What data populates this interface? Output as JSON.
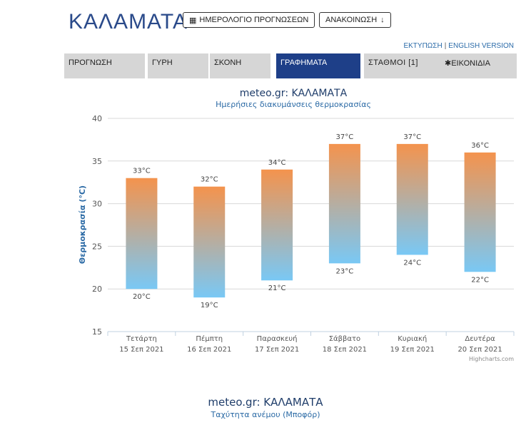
{
  "header": {
    "city": "ΚΑΛΑΜΑΤΑ",
    "calendar_button": "ΗΜΕΡΟΛΟΓΙΟ ΠΡΟΓΝΩΣΕΩΝ",
    "announcement_button": "ΑΝΑΚΟΙΝΩΣΗ",
    "print_link": "ΕΚΤΥΠΩΣΗ",
    "english_link": "ENGLISH VERSION"
  },
  "tabs": [
    {
      "label": "ΠΡΟΓΝΩΣΗ"
    },
    {
      "label": "ΓΥΡΗ"
    },
    {
      "label": "ΣΚΟΝΗ"
    },
    {
      "label": "ΓΡΑΦΗΜΑΤΑ"
    },
    {
      "label": "ΣΤΑΘΜΟΙ [1]"
    },
    {
      "label": "ΕΙΚΟΝΙΔΙΑ"
    }
  ],
  "chart_data": {
    "type": "bar",
    "title": "meteo.gr: ΚΑΛΑΜΑΤΑ",
    "subtitle": "Ημερήσιες διακυμάνσεις θερμοκρασίας",
    "ylabel": "Θερμοκρασία (°C)",
    "ylim": [
      15,
      40
    ],
    "yticks": [
      "15",
      "20",
      "25",
      "30",
      "35",
      "40"
    ],
    "categories": [
      {
        "day": "Τετάρτη",
        "date": "15 Σεπ 2021"
      },
      {
        "day": "Πέμπτη",
        "date": "16 Σεπ 2021"
      },
      {
        "day": "Παρασκευή",
        "date": "17 Σεπ 2021"
      },
      {
        "day": "Σάββατο",
        "date": "18 Σεπ 2021"
      },
      {
        "day": "Κυριακή",
        "date": "19 Σεπ 2021"
      },
      {
        "day": "Δευτέρα",
        "date": "20 Σεπ 2021"
      }
    ],
    "min": [
      20,
      19,
      21,
      23,
      24,
      22
    ],
    "max": [
      33,
      32,
      34,
      37,
      37,
      36
    ],
    "min_labels": [
      "20°C",
      "19°C",
      "21°C",
      "23°C",
      "24°C",
      "22°C"
    ],
    "max_labels": [
      "33°C",
      "32°C",
      "34°C",
      "37°C",
      "37°C",
      "36°C"
    ],
    "colors": {
      "top": "#f4934d",
      "bottom": "#79c8f5",
      "grid": "#d8d8d8"
    },
    "credit": "Highcharts.com",
    "grid": true
  },
  "second_chart": {
    "title": "meteo.gr: ΚΑΛΑΜΑΤΑ",
    "subtitle": "Ταχύτητα ανέμου (Μποφόρ)"
  }
}
